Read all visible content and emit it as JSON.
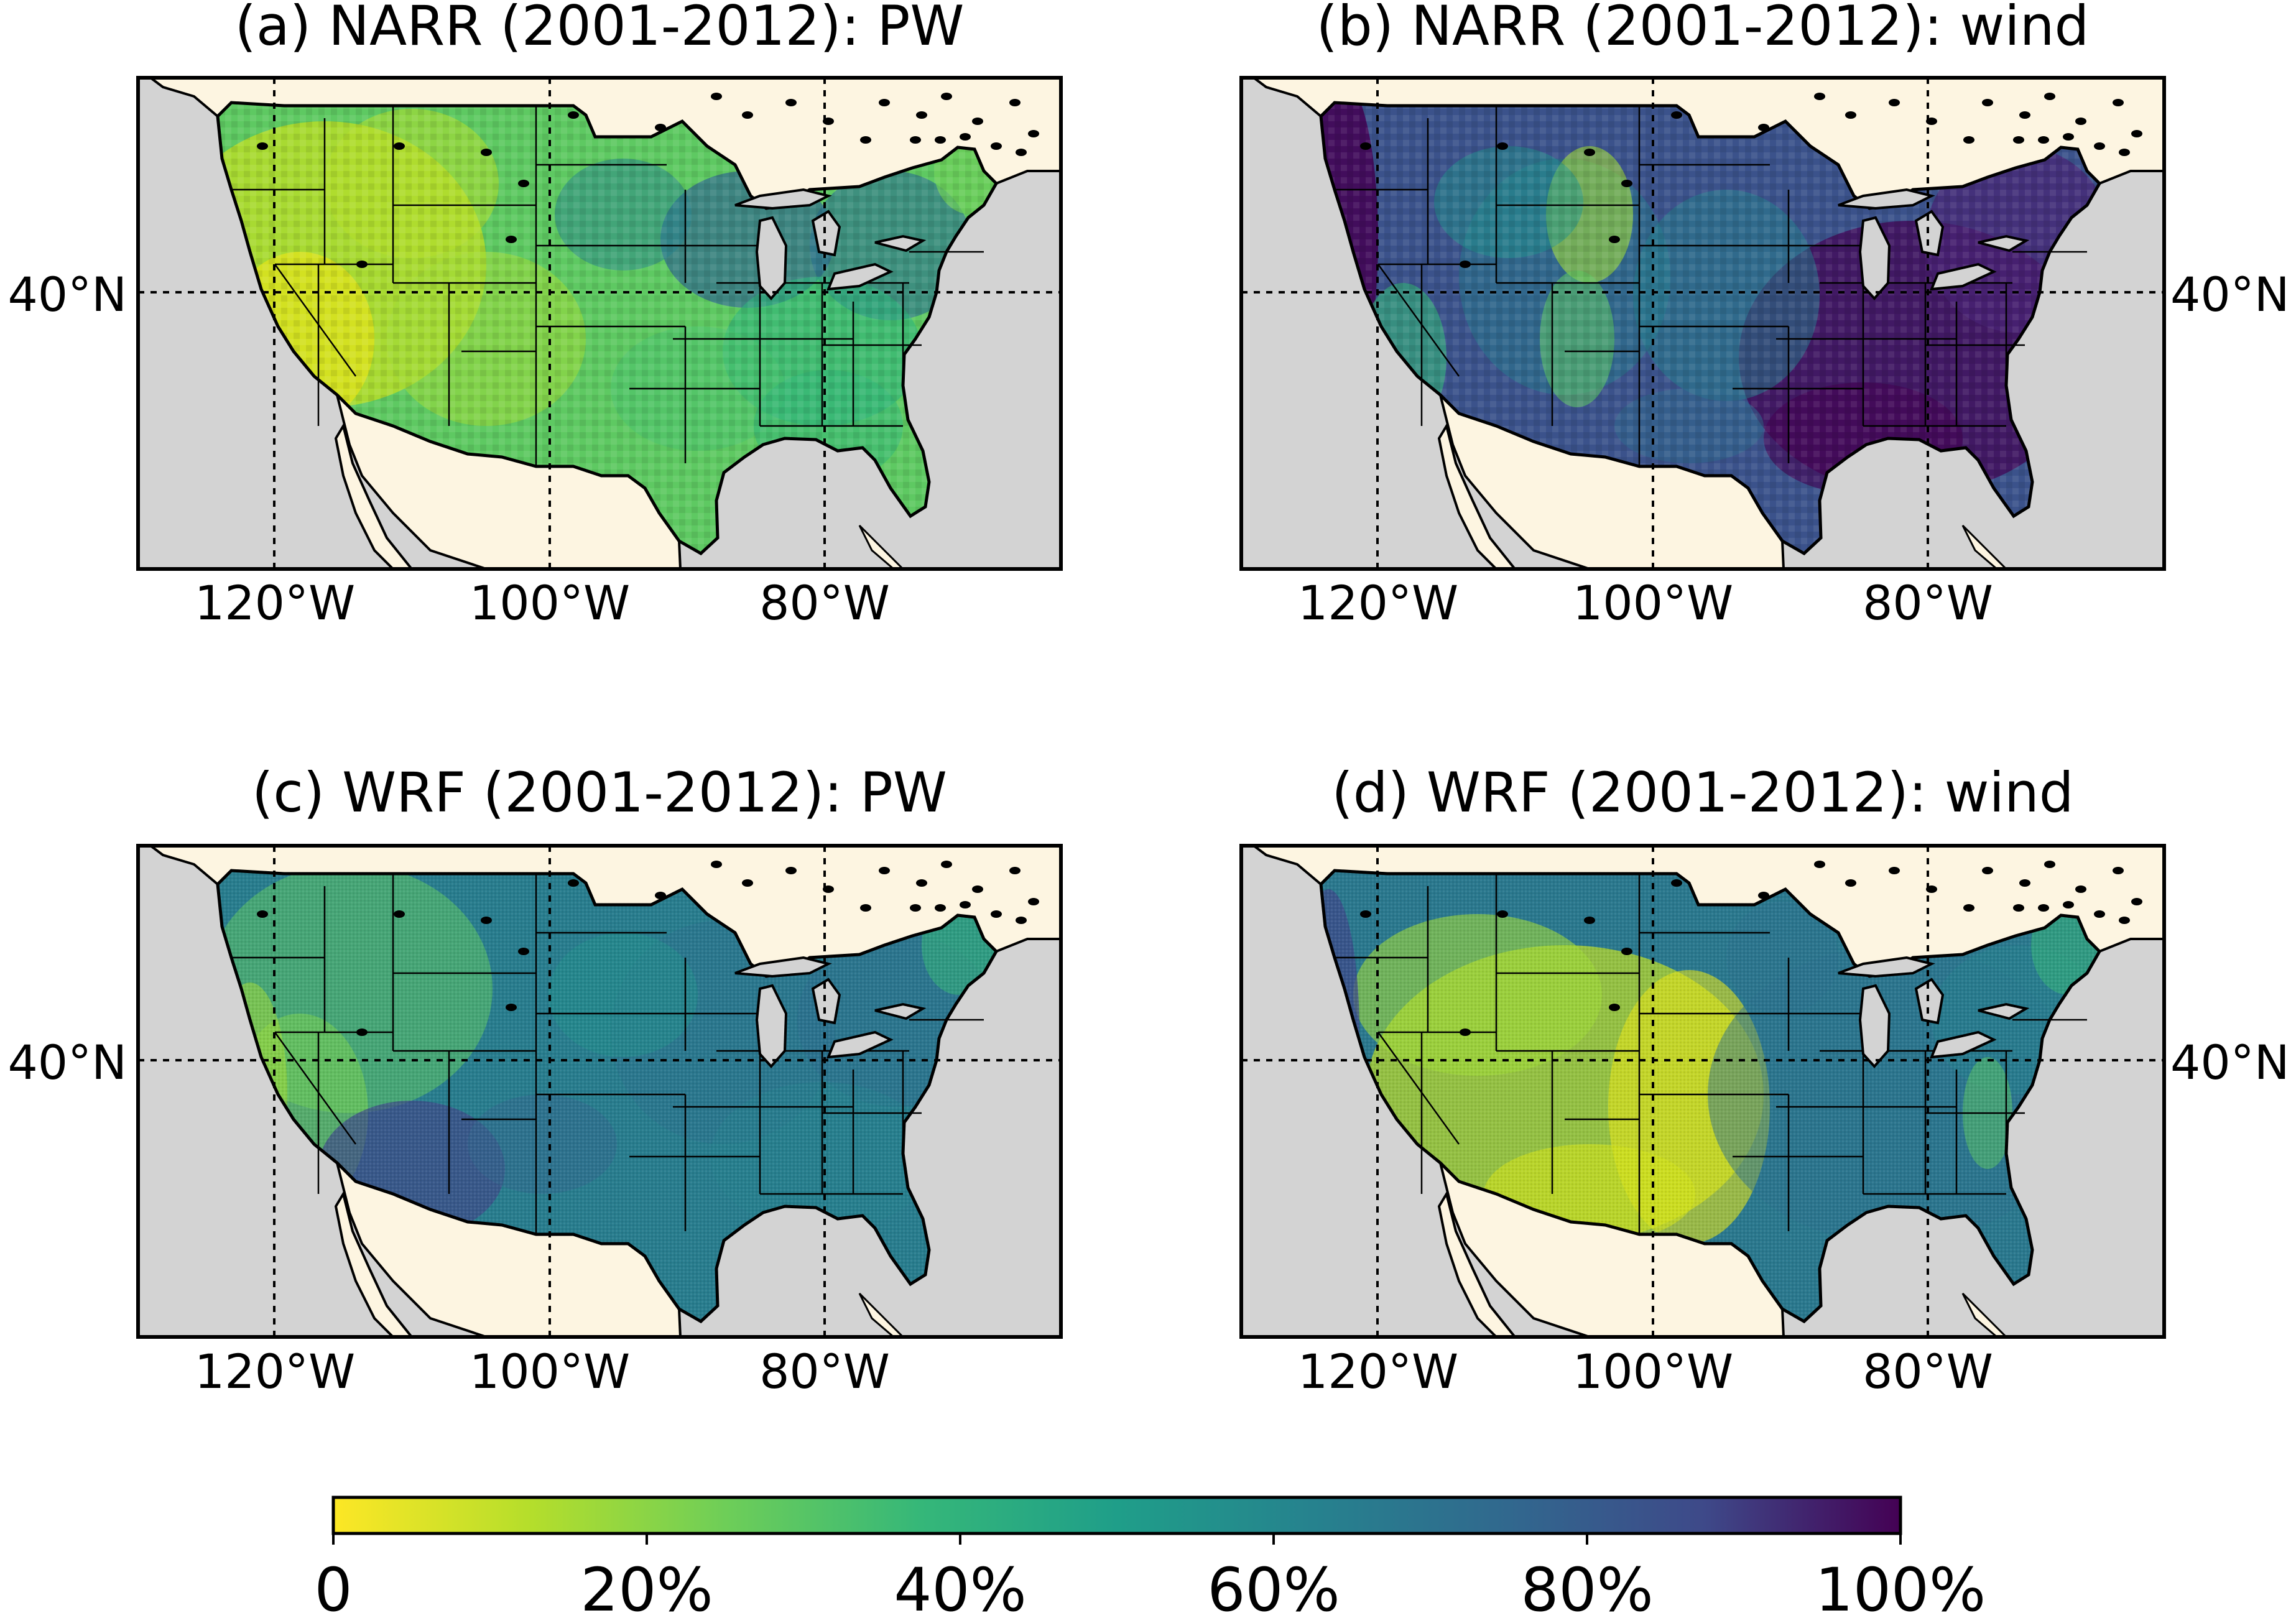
{
  "figure": {
    "panels": [
      {
        "id": "a",
        "title": "(a) NARR (2001-2012): PW",
        "style": "narr",
        "palette": "pw_narr",
        "lat_label_side": "left"
      },
      {
        "id": "b",
        "title": "(b) NARR (2001-2012): wind",
        "style": "narr",
        "palette": "wind_narr",
        "lat_label_side": "right"
      },
      {
        "id": "c",
        "title": "(c) WRF (2001-2012): PW",
        "style": "wrf",
        "palette": "pw_wrf",
        "lat_label_side": "left"
      },
      {
        "id": "d",
        "title": "(d) WRF (2001-2012): wind",
        "style": "wrf",
        "palette": "wind_wrf",
        "lat_label_side": "right"
      }
    ],
    "lon_ticks": [
      "120°W",
      "100°W",
      "80°W"
    ],
    "lat_ticks": [
      "40°N"
    ],
    "colorbar": {
      "colormap": "viridis_r",
      "range": [
        0,
        100
      ],
      "ticks": [
        "0",
        "20%",
        "40%",
        "60%",
        "80%",
        "100%"
      ]
    },
    "colors": {
      "ocean": "#d3d3d3",
      "land": "#fdf5e1",
      "frame": "#000000",
      "gridline": "#000000"
    }
  }
}
